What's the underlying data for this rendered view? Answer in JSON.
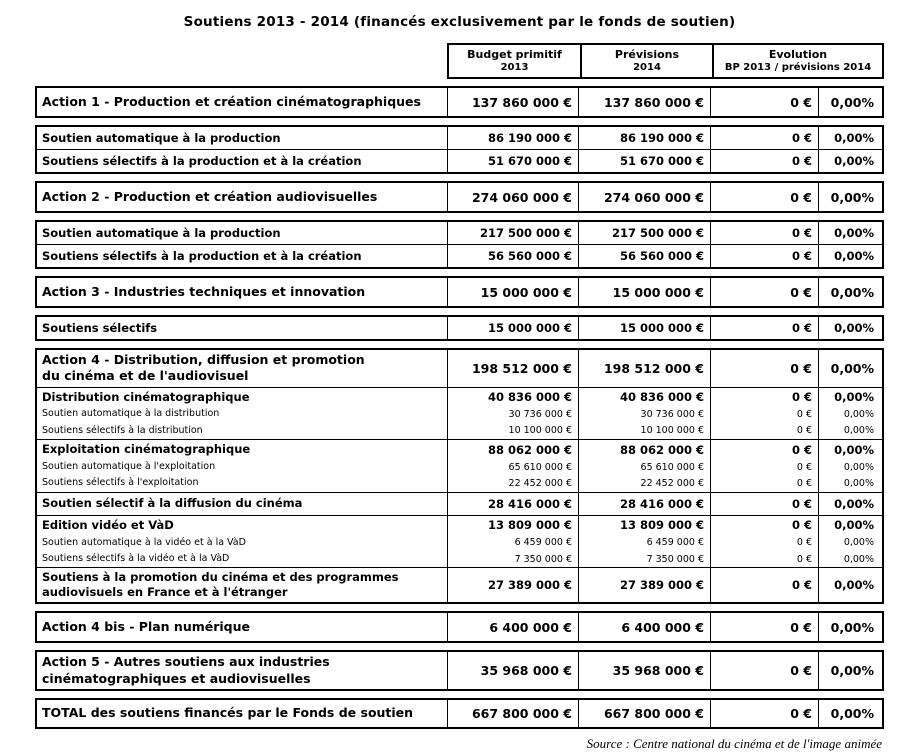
{
  "page": {
    "title": "Soutiens 2013 - 2014 (financés exclusivement par le fonds de soutien)",
    "source": "Source : Centre national du cinéma et de l'image animée"
  },
  "header": {
    "budget_line1": "Budget primitif",
    "budget_line2": "2013",
    "previsions_line1": "Prévisions",
    "previsions_line2": "2014",
    "evolution_line1": "Evolution",
    "evolution_line2": "BP 2013 / prévisions 2014"
  },
  "blocks": [
    {
      "rows": [
        {
          "style": "action",
          "label": "Action 1 - Production et création cinématographiques",
          "values": [
            "137 860 000 €",
            "137 860 000 €",
            "0 €",
            "0,00%"
          ]
        }
      ]
    },
    {
      "rows": [
        {
          "style": "sub",
          "label": "Soutien automatique à la production",
          "values": [
            "86 190 000 €",
            "86 190 000 €",
            "0 €",
            "0,00%"
          ]
        },
        {
          "style": "sub",
          "sep": true,
          "label": "Soutiens sélectifs à la production et à la création",
          "values": [
            "51 670 000 €",
            "51 670 000 €",
            "0 €",
            "0,00%"
          ]
        }
      ]
    },
    {
      "rows": [
        {
          "style": "action",
          "label": "Action 2 - Production et création audiovisuelles",
          "values": [
            "274 060 000 €",
            "274 060 000 €",
            "0 €",
            "0,00%"
          ]
        }
      ]
    },
    {
      "rows": [
        {
          "style": "sub",
          "label": "Soutien automatique à la production",
          "values": [
            "217 500 000 €",
            "217 500 000 €",
            "0 €",
            "0,00%"
          ]
        },
        {
          "style": "sub",
          "sep": true,
          "label": "Soutiens sélectifs à la production et à la création",
          "values": [
            "56 560 000 €",
            "56 560 000 €",
            "0 €",
            "0,00%"
          ]
        }
      ]
    },
    {
      "rows": [
        {
          "style": "action",
          "label": "Action 3 - Industries techniques et innovation",
          "values": [
            "15 000 000 €",
            "15 000 000 €",
            "0 €",
            "0,00%"
          ]
        }
      ]
    },
    {
      "rows": [
        {
          "style": "sub",
          "label": "Soutiens sélectifs",
          "values": [
            "15 000 000 €",
            "15 000 000 €",
            "0 €",
            "0,00%"
          ]
        }
      ]
    },
    {
      "rows": [
        {
          "style": "action",
          "label": "Action 4 - Distribution, diffusion et promotion\ndu cinéma et de l'audiovisuel",
          "values": [
            "198 512 000 €",
            "198 512 000 €",
            "0 €",
            "0,00%"
          ]
        },
        {
          "style": "main",
          "sep": true,
          "label": "Distribution cinématographique",
          "values": [
            "40 836 000 €",
            "40 836 000 €",
            "0 €",
            "0,00%"
          ]
        },
        {
          "style": "small",
          "label": "Soutien automatique à la distribution",
          "values": [
            "30 736 000 €",
            "30 736 000 €",
            "0 €",
            "0,00%"
          ]
        },
        {
          "style": "small",
          "label": "Soutiens sélectifs à la distribution",
          "values": [
            "10 100 000 €",
            "10 100 000 €",
            "0 €",
            "0,00%"
          ]
        },
        {
          "style": "main",
          "sep": true,
          "label": "Exploitation cinématographique",
          "values": [
            "88 062 000 €",
            "88 062 000 €",
            "0 €",
            "0,00%"
          ]
        },
        {
          "style": "small",
          "label": "Soutien automatique à l'exploitation",
          "values": [
            "65 610 000 €",
            "65 610 000 €",
            "0 €",
            "0,00%"
          ]
        },
        {
          "style": "small",
          "label": "Soutiens sélectifs à l'exploitation",
          "values": [
            "22 452 000 €",
            "22 452 000 €",
            "0 €",
            "0,00%"
          ]
        },
        {
          "style": "sub",
          "sep": true,
          "label": "Soutien sélectif à la diffusion du cinéma",
          "values": [
            "28 416 000 €",
            "28 416 000 €",
            "0 €",
            "0,00%"
          ]
        },
        {
          "style": "main",
          "sep": true,
          "label": "Edition vidéo et VàD",
          "values": [
            "13 809 000 €",
            "13 809 000 €",
            "0 €",
            "0,00%"
          ]
        },
        {
          "style": "small",
          "label": "Soutien automatique à la vidéo et à la VàD",
          "values": [
            "6 459 000 €",
            "6 459 000 €",
            "0 €",
            "0,00%"
          ]
        },
        {
          "style": "small",
          "label": "Soutiens sélectifs à la vidéo et à la VàD",
          "values": [
            "7 350 000 €",
            "7 350 000 €",
            "0 €",
            "0,00%"
          ]
        },
        {
          "style": "sub",
          "sep": true,
          "label": "Soutiens à la promotion du cinéma et des programmes\naudiovisuels en France et à l'étranger",
          "values": [
            "27 389 000 €",
            "27 389 000 €",
            "0 €",
            "0,00%"
          ]
        }
      ]
    },
    {
      "rows": [
        {
          "style": "action",
          "label": "Action 4 bis - Plan numérique",
          "values": [
            "6 400 000 €",
            "6 400 000 €",
            "0 €",
            "0,00%"
          ]
        }
      ]
    },
    {
      "rows": [
        {
          "style": "action",
          "label": "Action 5 - Autres soutiens aux industries\ncinématographiques et audiovisuelles",
          "values": [
            "35 968 000 €",
            "35 968 000 €",
            "0 €",
            "0,00%"
          ]
        }
      ]
    },
    {
      "rows": [
        {
          "style": "total",
          "label": "TOTAL des soutiens financés par le Fonds de soutien",
          "values": [
            "667 800 000 €",
            "667 800 000 €",
            "0 €",
            "0,00%"
          ]
        }
      ]
    }
  ]
}
